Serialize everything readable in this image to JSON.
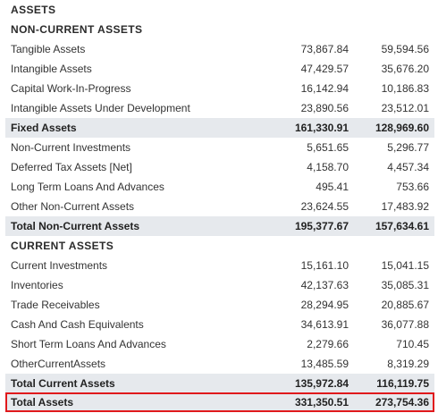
{
  "title": "ASSETS",
  "sections": {
    "non_current_heading": "NON-CURRENT ASSETS",
    "current_heading": "CURRENT ASSETS"
  },
  "rows": [
    {
      "label": "Tangible Assets",
      "v1": "73,867.84",
      "v2": "59,594.56"
    },
    {
      "label": "Intangible Assets",
      "v1": "47,429.57",
      "v2": "35,676.20"
    },
    {
      "label": "Capital Work-In-Progress",
      "v1": "16,142.94",
      "v2": "10,186.83"
    },
    {
      "label": "Intangible Assets Under Development",
      "v1": "23,890.56",
      "v2": "23,512.01"
    },
    {
      "label": "Fixed Assets",
      "v1": "161,330.91",
      "v2": "128,969.60"
    },
    {
      "label": "Non-Current Investments",
      "v1": "5,651.65",
      "v2": "5,296.77"
    },
    {
      "label": "Deferred Tax Assets [Net]",
      "v1": "4,158.70",
      "v2": "4,457.34"
    },
    {
      "label": "Long Term Loans And Advances",
      "v1": "495.41",
      "v2": "753.66"
    },
    {
      "label": "Other Non-Current Assets",
      "v1": "23,624.55",
      "v2": "17,483.92"
    },
    {
      "label": "Total Non-Current Assets",
      "v1": "195,377.67",
      "v2": "157,634.61"
    },
    {
      "label": "Current Investments",
      "v1": "15,161.10",
      "v2": "15,041.15"
    },
    {
      "label": "Inventories",
      "v1": "42,137.63",
      "v2": "35,085.31"
    },
    {
      "label": "Trade Receivables",
      "v1": "28,294.95",
      "v2": "20,885.67"
    },
    {
      "label": "Cash And Cash Equivalents",
      "v1": "34,613.91",
      "v2": "36,077.88"
    },
    {
      "label": "Short Term Loans And Advances",
      "v1": "2,279.66",
      "v2": "710.45"
    },
    {
      "label": "OtherCurrentAssets",
      "v1": "13,485.59",
      "v2": "8,319.29"
    },
    {
      "label": "Total Current Assets",
      "v1": "135,972.84",
      "v2": "116,119.75"
    },
    {
      "label": "Total Assets",
      "v1": "331,350.51",
      "v2": "273,754.36"
    }
  ],
  "colors": {
    "subtotal_bg": "#e6e9ed",
    "highlight_border": "#e0191c",
    "text": "#333333"
  }
}
